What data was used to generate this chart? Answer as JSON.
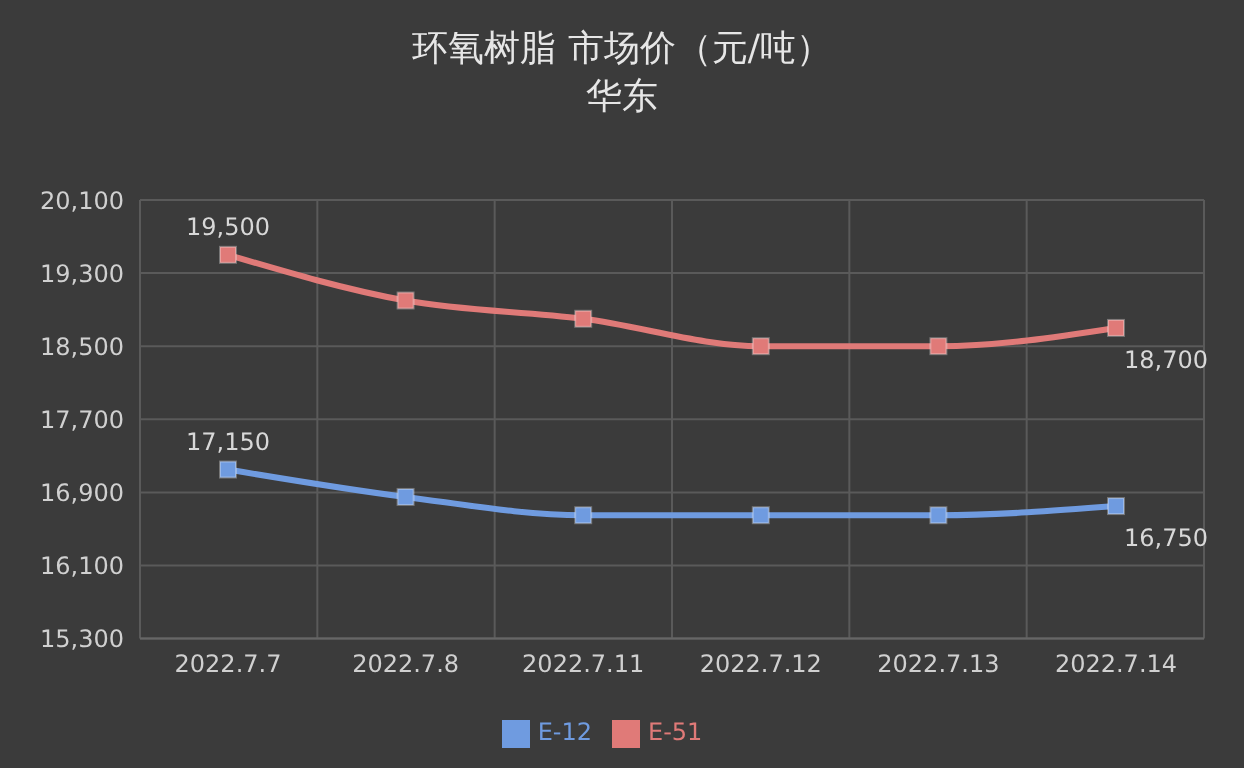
{
  "chart_data": {
    "type": "line",
    "title": "环氧树脂  市场价（元/吨）",
    "subtitle": "华东",
    "categories": [
      "2022.7.7",
      "2022.7.8",
      "2022.7.11",
      "2022.7.12",
      "2022.7.13",
      "2022.7.14"
    ],
    "series": [
      {
        "name": "E-12",
        "color": "#6f9be0",
        "values": [
          17150,
          16850,
          16650,
          16650,
          16650,
          16750
        ],
        "value_labels": [
          "17,150",
          null,
          null,
          null,
          null,
          "16,750"
        ]
      },
      {
        "name": "E-51",
        "color": "#e07a78",
        "values": [
          19500,
          19000,
          18800,
          18500,
          18500,
          18700
        ],
        "value_labels": [
          "19,500",
          null,
          null,
          null,
          null,
          "18,700"
        ]
      }
    ],
    "ylim": [
      15300,
      20100
    ],
    "yticks": [
      {
        "value": 15300,
        "label": "15,300"
      },
      {
        "value": 16100,
        "label": "16,100"
      },
      {
        "value": 16900,
        "label": "16,900"
      },
      {
        "value": 17700,
        "label": "17,700"
      },
      {
        "value": 18500,
        "label": "18,500"
      },
      {
        "value": 19300,
        "label": "19,300"
      },
      {
        "value": 20100,
        "label": "20,100"
      }
    ],
    "grid": true,
    "legend": "bottom",
    "marker": "square",
    "line_style": "solid"
  }
}
